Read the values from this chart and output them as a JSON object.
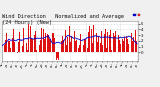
{
  "title": "Wind Direction   Normalized and Average",
  "subtitle": "(24 Hours) (New)",
  "title_fontsize": 3.8,
  "background_color": "#f0f0f0",
  "plot_bg_color": "#ffffff",
  "grid_color": "#bbbbbb",
  "bar_color": "#dd1111",
  "avg_line_color": "#0000cc",
  "ylim": [
    -1.5,
    5.5
  ],
  "yticks": [
    0,
    1,
    2,
    3,
    4,
    5
  ],
  "n_bars": 240,
  "legend_norm_color": "#0000cc",
  "legend_avg_color": "#dd1111",
  "seed": 7
}
